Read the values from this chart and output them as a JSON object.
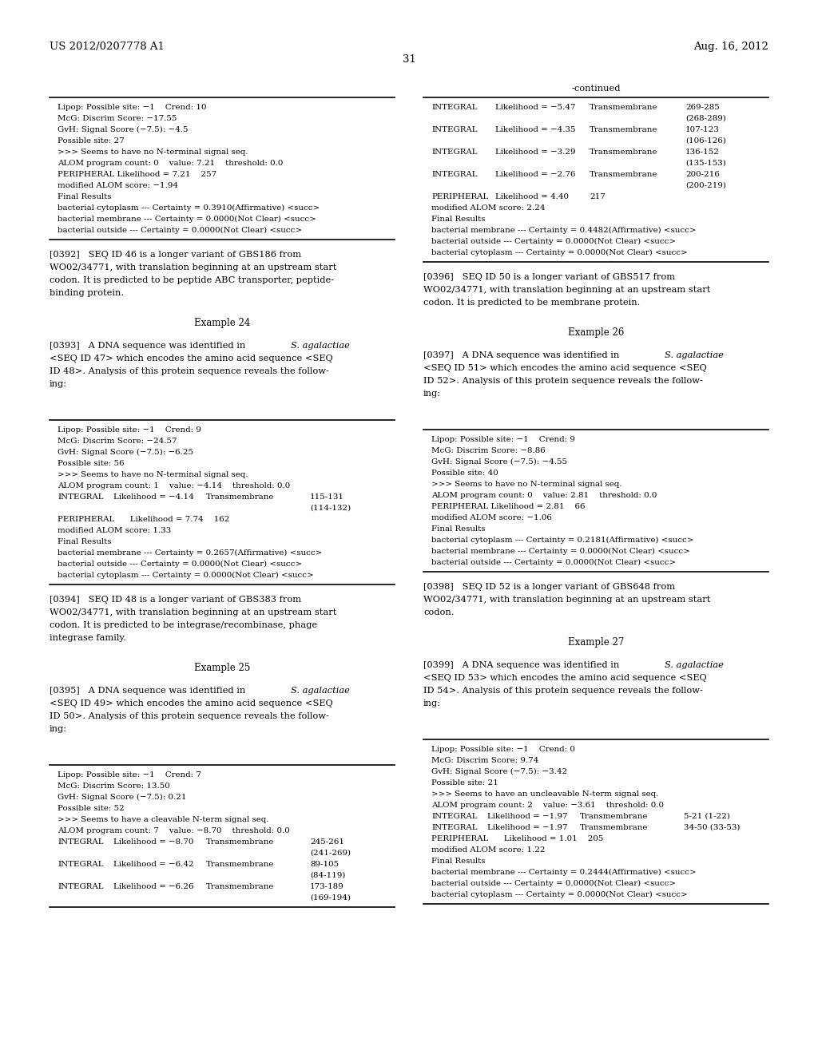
{
  "page_number": "31",
  "header_left": "US 2012/0207778 A1",
  "header_right": "Aug. 16, 2012",
  "background_color": "#ffffff"
}
